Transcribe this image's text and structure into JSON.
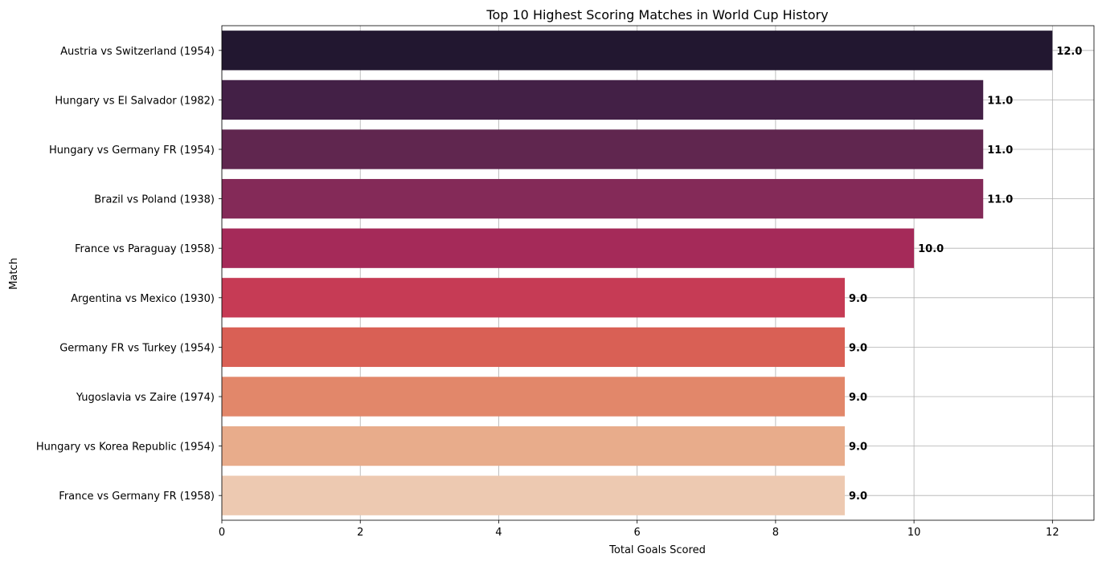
{
  "chart_data": {
    "type": "bar",
    "orientation": "horizontal",
    "title": "Top 10 Highest Scoring Matches in World Cup History",
    "xlabel": "Total Goals Scored",
    "ylabel": "Match",
    "categories": [
      "Austria vs Switzerland (1954)",
      "Hungary vs El Salvador (1982)",
      "Hungary vs Germany FR (1954)",
      "Brazil vs Poland (1938)",
      "France vs Paraguay (1958)",
      "Argentina vs Mexico (1930)",
      "Germany FR vs Turkey (1954)",
      "Yugoslavia vs Zaire (1974)",
      "Hungary vs Korea Republic (1954)",
      "France vs Germany FR (1958)"
    ],
    "values": [
      12,
      11,
      11,
      11,
      10,
      9,
      9,
      9,
      9,
      9
    ],
    "value_labels": [
      "12.0",
      "11.0",
      "11.0",
      "11.0",
      "10.0",
      "9.0",
      "9.0",
      "9.0",
      "9.0",
      "9.0"
    ],
    "colors": [
      "#221730",
      "#432046",
      "#60264f",
      "#842a58",
      "#a52a59",
      "#c63b55",
      "#d96055",
      "#e2876a",
      "#e8ac8b",
      "#edc9b1"
    ],
    "xlim": [
      0,
      12.6
    ],
    "xticks": [
      0,
      2,
      4,
      6,
      8,
      10,
      12
    ],
    "xtick_labels": [
      "0",
      "2",
      "4",
      "6",
      "8",
      "10",
      "12"
    ],
    "grid": true,
    "grid_color": "#b0b0b0",
    "legend": "none"
  }
}
